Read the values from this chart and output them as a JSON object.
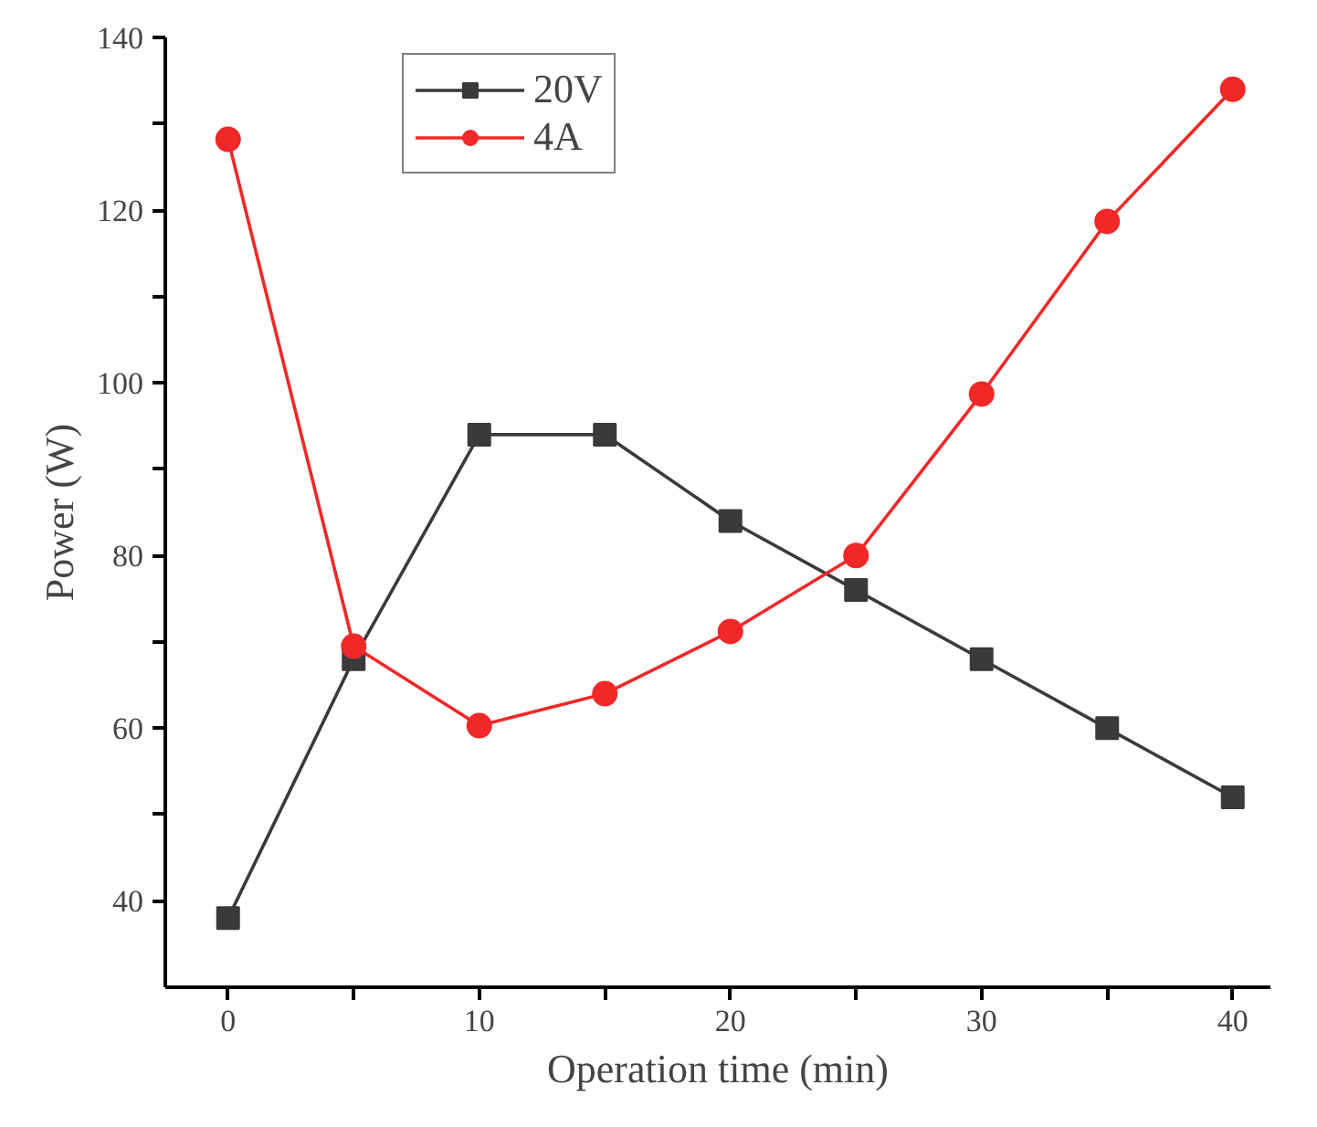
{
  "chart_data": {
    "type": "line",
    "xlabel": "Operation time (min)",
    "ylabel": "Power (W)",
    "x": [
      0,
      5,
      10,
      15,
      20,
      25,
      30,
      35,
      40
    ],
    "series": [
      {
        "name": "20V",
        "color": "#3a3a3a",
        "marker": "square",
        "values": [
          38,
          68,
          94,
          94,
          84,
          76,
          68,
          60,
          52
        ]
      },
      {
        "name": "4A",
        "color": "#f02828",
        "marker": "circle",
        "values": [
          128.2,
          69.5,
          60.3,
          64,
          71.2,
          80,
          98.7,
          118.7,
          134
        ]
      }
    ],
    "xlim": [
      -2.5,
      41.5
    ],
    "ylim": [
      30,
      140
    ],
    "xticks": [
      0,
      {
        "value": 5,
        "label": null
      },
      10,
      {
        "value": 15,
        "label": null
      },
      20,
      {
        "value": 25,
        "label": null
      },
      30,
      {
        "value": 35,
        "label": null
      },
      40
    ],
    "yticks": [
      40,
      {
        "value": 50,
        "label": null
      },
      60,
      {
        "value": 70,
        "label": null
      },
      80,
      {
        "value": 90,
        "label": null
      },
      100,
      {
        "value": 110,
        "label": null
      },
      120,
      {
        "value": 130,
        "label": null
      },
      140
    ],
    "grid": false,
    "legend": "top",
    "line_style": "solid"
  }
}
